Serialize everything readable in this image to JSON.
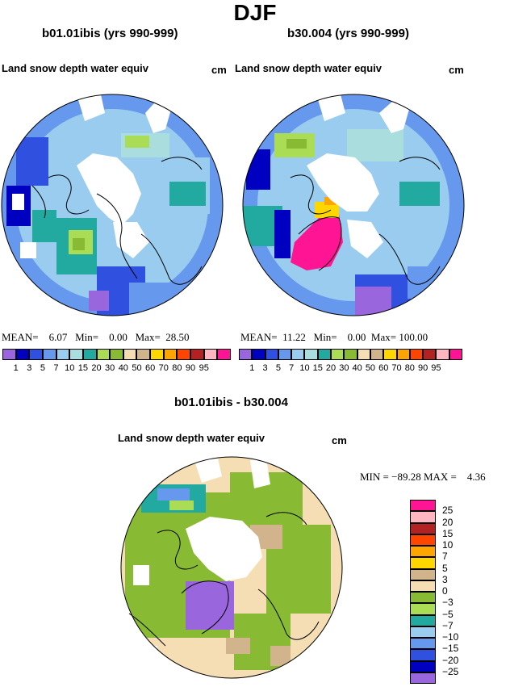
{
  "title": "DJF",
  "panels": [
    {
      "name": "b01.01ibis (yrs 990-999)",
      "variable": "Land snow depth water equiv",
      "units": "cm",
      "stats": {
        "mean_label": "MEAN=",
        "mean": "6.07",
        "min_label": "Min=",
        "min": "0.00",
        "max_label": "Max=",
        "max": "28.50"
      }
    },
    {
      "name": "b30.004 (yrs 990-999)",
      "variable": "Land snow depth water equiv",
      "units": "cm",
      "stats": {
        "mean_label": "MEAN=",
        "mean": "11.22",
        "min_label": "Min=",
        "min": "0.00",
        "max_label": "Max=",
        "max": "100.00"
      }
    }
  ],
  "colorbar_abs": {
    "labels": [
      "1",
      "3",
      "5",
      "7",
      "10",
      "15",
      "20",
      "30",
      "40",
      "50",
      "60",
      "70",
      "80",
      "90",
      "95"
    ],
    "colors": [
      "#9966dd",
      "#0000c0",
      "#3050e0",
      "#6699ee",
      "#99ccee",
      "#aadddd",
      "#22aaa0",
      "#aadd55",
      "#88bb33",
      "#f5deb3",
      "#d2b48c",
      "#ffd700",
      "#ffa500",
      "#ff4500",
      "#b22222",
      "#ffb6c1",
      "#ff1493"
    ]
  },
  "diff_panel": {
    "name": "b01.01ibis - b30.004",
    "variable": "Land snow depth water equiv",
    "units": "cm",
    "min_label": "MIN =",
    "min": "−89.28",
    "max_label": "MAX =",
    "max": "4.36"
  },
  "colorbar_diff": {
    "labels": [
      "25",
      "20",
      "15",
      "10",
      "7",
      "5",
      "3",
      "0",
      "−3",
      "−5",
      "−7",
      "−10",
      "−15",
      "−20",
      "−25"
    ],
    "colors": [
      "#ff1493",
      "#ffb6c1",
      "#b22222",
      "#ff4500",
      "#ffa500",
      "#ffd700",
      "#d2b48c",
      "#f5deb3",
      "#88bb33",
      "#aadd55",
      "#22aaa0",
      "#99ccee",
      "#6699ee",
      "#3050e0",
      "#0000c0",
      "#9966dd"
    ]
  }
}
